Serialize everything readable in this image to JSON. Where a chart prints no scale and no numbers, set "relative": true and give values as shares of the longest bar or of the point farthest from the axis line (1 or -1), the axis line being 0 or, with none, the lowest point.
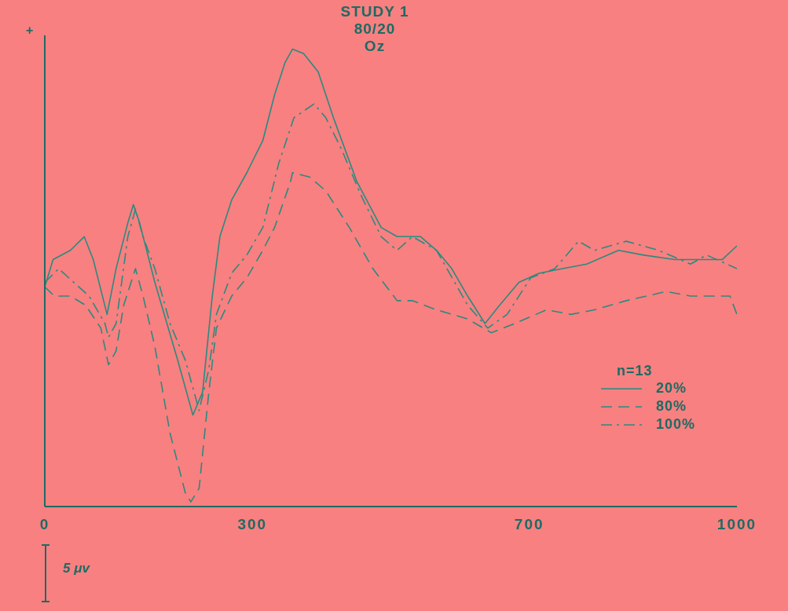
{
  "chart_data": {
    "type": "line",
    "relative": true,
    "title": "STUDY 1\n80/20\nOz",
    "legend_title": "n=13",
    "legend": "bottom right",
    "grid": false,
    "marker": "none",
    "xlim": [
      0,
      1000
    ],
    "xticks": [
      0,
      300,
      700,
      1000
    ],
    "annotations": [
      "+",
      "5 μv"
    ],
    "series": [
      {
        "name": "20%",
        "color": "#2a8a80",
        "line_style": "solid",
        "x": [
          0,
          12,
          37,
          57,
          70,
          90,
          103,
          120,
          128,
          137,
          159,
          192,
          214,
          228,
          242,
          253,
          270,
          292,
          315,
          332,
          347,
          358,
          374,
          395,
          417,
          451,
          486,
          509,
          543,
          566,
          588,
          611,
          636,
          657,
          685,
          714,
          748,
          783,
          829,
          864,
          910,
          956,
          979,
          1000
        ],
        "values": [
          0.48,
          0.54,
          0.56,
          0.59,
          0.54,
          0.42,
          0.52,
          0.62,
          0.66,
          0.62,
          0.49,
          0.32,
          0.2,
          0.25,
          0.46,
          0.59,
          0.67,
          0.73,
          0.8,
          0.9,
          0.97,
          1,
          0.99,
          0.95,
          0.85,
          0.71,
          0.61,
          0.59,
          0.59,
          0.56,
          0.52,
          0.46,
          0.4,
          0.44,
          0.49,
          0.51,
          0.52,
          0.53,
          0.56,
          0.55,
          0.54,
          0.54,
          0.54,
          0.57
        ]
      },
      {
        "name": "80%",
        "color": "#2a8a80",
        "line_style": "dashed",
        "x": [
          0,
          14,
          37,
          59,
          81,
          92,
          103,
          114,
          131,
          142,
          159,
          181,
          203,
          211,
          223,
          237,
          248,
          270,
          292,
          315,
          332,
          355,
          358,
          383,
          406,
          440,
          474,
          509,
          531,
          566,
          611,
          645,
          679,
          725,
          760,
          794,
          840,
          898,
          933,
          956,
          990,
          1000
        ],
        "values": [
          0.48,
          0.46,
          0.46,
          0.44,
          0.39,
          0.31,
          0.34,
          0.44,
          0.52,
          0.46,
          0.35,
          0.16,
          0.03,
          0.01,
          0.04,
          0.25,
          0.39,
          0.46,
          0.5,
          0.56,
          0.61,
          0.71,
          0.73,
          0.72,
          0.69,
          0.61,
          0.52,
          0.45,
          0.45,
          0.43,
          0.41,
          0.38,
          0.4,
          0.43,
          0.42,
          0.43,
          0.45,
          0.47,
          0.46,
          0.46,
          0.46,
          0.42
        ]
      },
      {
        "name": "100%",
        "color": "#2a8a80",
        "line_style": "dashdot",
        "x": [
          0,
          20,
          42,
          64,
          87,
          92,
          103,
          120,
          131,
          142,
          159,
          181,
          203,
          223,
          237,
          248,
          270,
          292,
          315,
          338,
          360,
          389,
          406,
          429,
          457,
          486,
          509,
          531,
          566,
          611,
          640,
          668,
          702,
          737,
          771,
          794,
          840,
          887,
          933,
          956,
          1000
        ],
        "values": [
          0.49,
          0.52,
          0.49,
          0.46,
          0.4,
          0.37,
          0.4,
          0.59,
          0.65,
          0.59,
          0.52,
          0.4,
          0.32,
          0.21,
          0.3,
          0.42,
          0.51,
          0.55,
          0.61,
          0.75,
          0.85,
          0.88,
          0.85,
          0.78,
          0.68,
          0.59,
          0.56,
          0.59,
          0.56,
          0.44,
          0.39,
          0.42,
          0.5,
          0.52,
          0.58,
          0.56,
          0.58,
          0.56,
          0.53,
          0.55,
          0.52
        ]
      }
    ]
  }
}
